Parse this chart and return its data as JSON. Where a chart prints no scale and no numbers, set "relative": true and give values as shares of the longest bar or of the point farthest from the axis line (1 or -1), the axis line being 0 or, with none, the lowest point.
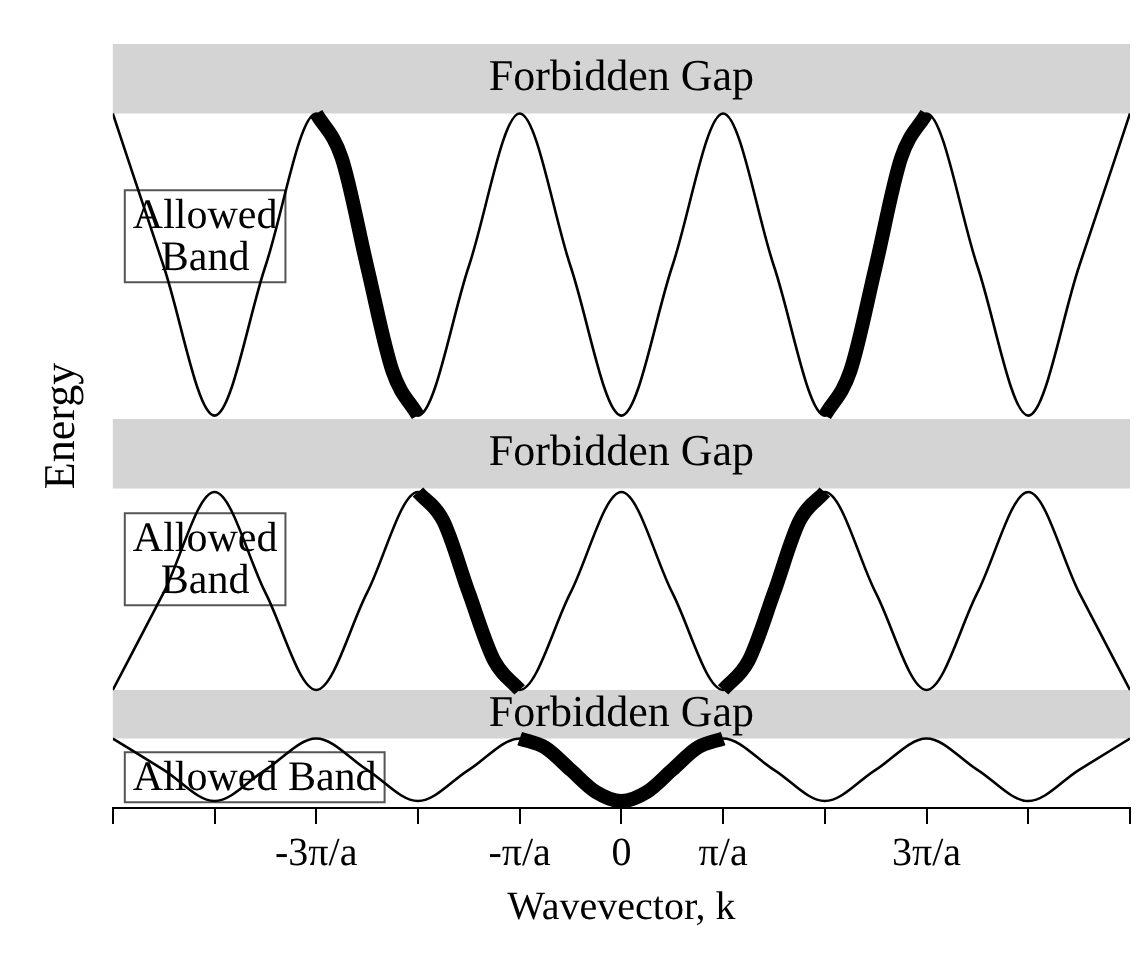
{
  "chart_data": {
    "type": "line",
    "relative": true,
    "xlabel": "Wavevector, k",
    "ylabel": "Energy",
    "xlim": [
      -5,
      5
    ],
    "xticks": [
      {
        "value": -5,
        "label": null
      },
      {
        "value": -4,
        "label": null
      },
      {
        "value": -3,
        "label": "-3π/a"
      },
      {
        "value": -2,
        "label": null
      },
      {
        "value": -1,
        "label": "-π/a"
      },
      0,
      {
        "value": 1,
        "label": "π/a"
      },
      {
        "value": 2,
        "label": null
      },
      {
        "value": 3,
        "label": "3π/a"
      },
      {
        "value": 4,
        "label": null
      },
      {
        "value": 5,
        "label": null
      }
    ],
    "x": [
      -5,
      -4.5,
      -4,
      -3.5,
      -3,
      -2.5,
      -2,
      -1.5,
      -1,
      -0.5,
      0,
      0.5,
      1,
      1.5,
      2,
      2.5,
      3,
      3.5,
      4,
      4.5,
      5
    ],
    "series": [
      {
        "color": "#000000",
        "values": [
          1.0,
          0.78,
          0.565,
          0.78,
          1.0,
          0.78,
          0.565,
          0.78,
          1.0,
          0.78,
          0.565,
          0.78,
          1.0,
          0.78,
          0.565,
          0.78,
          1.0,
          0.78,
          0.565,
          0.78,
          1.0
        ]
      },
      {
        "color": "#000000",
        "values": [
          0.17,
          0.31,
          0.455,
          0.31,
          0.17,
          0.31,
          0.455,
          0.31,
          0.17,
          0.31,
          0.455,
          0.31,
          0.17,
          0.31,
          0.455,
          0.31,
          0.17,
          0.31,
          0.455,
          0.31,
          0.17
        ]
      },
      {
        "color": "#000000",
        "values": [
          0.1,
          0.055,
          0.01,
          0.055,
          0.1,
          0.055,
          0.01,
          0.055,
          0.1,
          0.055,
          0.01,
          0.055,
          0.1,
          0.055,
          0.01,
          0.055,
          0.1,
          0.055,
          0.01,
          0.055,
          0.1
        ]
      },
      {
        "color": "#000000",
        "x": [
          -3,
          -2.75,
          -2.5,
          -2.25,
          -2
        ],
        "values": [
          1.0,
          0.936,
          0.78,
          0.629,
          0.565
        ]
      },
      {
        "color": "#000000",
        "x": [
          2,
          2.25,
          2.5,
          2.75,
          3
        ],
        "values": [
          0.565,
          0.629,
          0.78,
          0.936,
          1.0
        ]
      },
      {
        "color": "#000000",
        "x": [
          -2,
          -1.75,
          -1.5,
          -1.25,
          -1
        ],
        "values": [
          0.455,
          0.413,
          0.31,
          0.212,
          0.17
        ]
      },
      {
        "color": "#000000",
        "x": [
          1,
          1.25,
          1.5,
          1.75,
          2
        ],
        "values": [
          0.17,
          0.212,
          0.31,
          0.413,
          0.455
        ]
      },
      {
        "color": "#000000",
        "x": [
          -1,
          -0.75,
          -0.5,
          -0.25,
          0,
          0.25,
          0.5,
          0.75,
          1
        ],
        "values": [
          0.1,
          0.087,
          0.055,
          0.023,
          0.01,
          0.023,
          0.055,
          0.087,
          0.1
        ]
      }
    ],
    "bands": [
      {
        "axis": "y",
        "from": 1.0,
        "to": 1.1,
        "label": "Forbidden Gap",
        "color": "#d4d4d4"
      },
      {
        "axis": "y",
        "from": 0.46,
        "to": 0.56,
        "label": "Forbidden Gap",
        "color": "#d4d4d4"
      },
      {
        "axis": "y",
        "from": 0.1,
        "to": 0.17,
        "label": "Forbidden Gap",
        "color": "#d4d4d4"
      }
    ],
    "annotations": [
      "Allowed\nBand",
      "Allowed\nBand",
      "Allowed Band"
    ],
    "grid": false,
    "legend": false,
    "marker": "none",
    "line_style": "solid"
  }
}
